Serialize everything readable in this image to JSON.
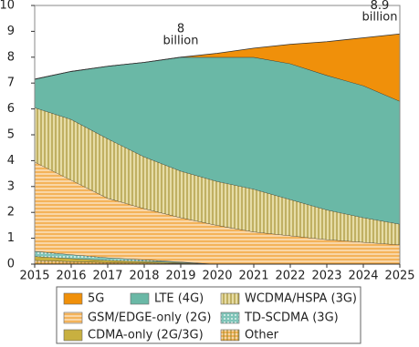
{
  "chart_data": {
    "type": "stacked_area",
    "x": [
      2015,
      2016,
      2017,
      2018,
      2019,
      2020,
      2021,
      2022,
      2023,
      2024,
      2025
    ],
    "xlim": [
      2015,
      2025
    ],
    "xticks": [
      2015,
      2016,
      2017,
      2018,
      2019,
      2020,
      2021,
      2022,
      2023,
      2024,
      2025
    ],
    "ylim": [
      0,
      10
    ],
    "yticks": [
      0,
      1,
      2,
      3,
      4,
      5,
      6,
      7,
      8,
      9,
      10
    ],
    "series": [
      {
        "name": "Other",
        "color": "#f3a43a",
        "pattern": "grid",
        "values": [
          0.15,
          0.1,
          0.07,
          0.05,
          0.03,
          0,
          0,
          0,
          0,
          0,
          0
        ]
      },
      {
        "name": "CDMA-only (2G/3G)",
        "color": "#c8b040",
        "pattern": "solid",
        "values": [
          0.15,
          0.12,
          0.08,
          0.06,
          0.03,
          0,
          0,
          0,
          0,
          0,
          0
        ]
      },
      {
        "name": "TD-SCDMA (3G)",
        "color": "#7fc4b8",
        "pattern": "dots",
        "values": [
          0.2,
          0.15,
          0.1,
          0.06,
          0.03,
          0,
          0,
          0,
          0,
          0,
          0
        ]
      },
      {
        "name": "GSM/EDGE-only (2G)",
        "color": "#f3a43a",
        "pattern": "horizontal",
        "values": [
          3.45,
          2.88,
          2.3,
          1.98,
          1.71,
          1.5,
          1.25,
          1.1,
          0.95,
          0.85,
          0.75
        ]
      },
      {
        "name": "WCDMA/HSPA (3G)",
        "color": "#c9b23a",
        "pattern": "vertical",
        "values": [
          2.1,
          2.35,
          2.3,
          2.0,
          1.8,
          1.7,
          1.65,
          1.4,
          1.15,
          0.95,
          0.8
        ]
      },
      {
        "name": "LTE (4G)",
        "color": "#6ab8a6",
        "pattern": "solid",
        "values": [
          1.1,
          1.85,
          2.8,
          3.65,
          4.4,
          4.8,
          5.1,
          5.25,
          5.2,
          5.1,
          4.75
        ]
      },
      {
        "name": "5G",
        "color": "#f0900a",
        "pattern": "solid",
        "values": [
          0,
          0,
          0,
          0,
          0,
          0.15,
          0.35,
          0.75,
          1.3,
          1.85,
          2.6
        ]
      }
    ],
    "annotations": [
      {
        "x": 2019,
        "y": 8,
        "text": [
          "8",
          "billion"
        ]
      },
      {
        "x": 2025,
        "y": 8.9,
        "text": [
          "8.9",
          "billion"
        ]
      }
    ]
  }
}
